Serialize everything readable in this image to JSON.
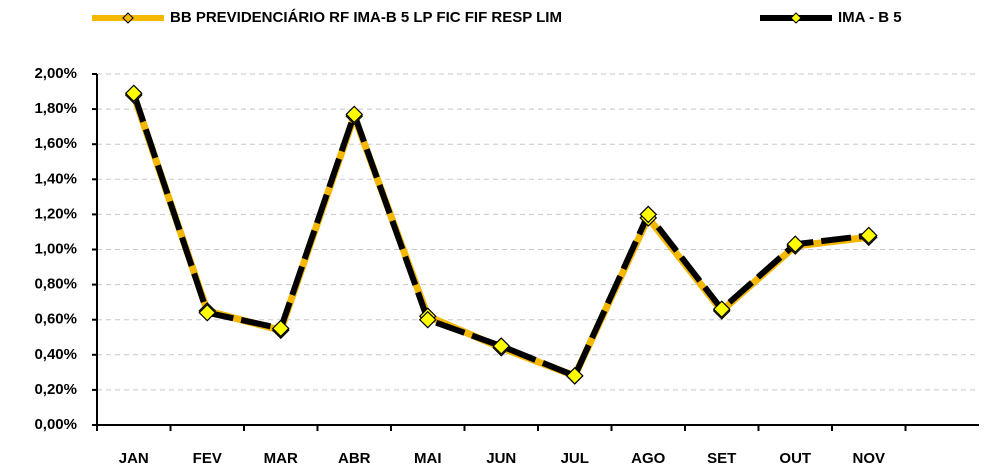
{
  "chart_data": {
    "type": "line",
    "categories": [
      "JAN",
      "FEV",
      "MAR",
      "ABR",
      "MAI",
      "JUN",
      "JUL",
      "AGO",
      "SET",
      "OUT",
      "NOV",
      null
    ],
    "series": [
      {
        "name": "BB PREVIDENCIÁRIO RF IMA-B 5 LP FIC FIF RESP LIM",
        "color": "#f5b800",
        "values": [
          1.88,
          0.65,
          0.54,
          1.76,
          0.62,
          0.44,
          0.28,
          1.18,
          0.65,
          1.02,
          1.07,
          null
        ]
      },
      {
        "name": "IMA - B 5",
        "color": "#000000",
        "values": [
          1.89,
          0.64,
          0.55,
          1.77,
          0.6,
          0.45,
          0.28,
          1.2,
          0.66,
          1.03,
          1.08,
          null
        ]
      }
    ],
    "marker_color": "#ffff00",
    "ylim": [
      0,
      2
    ],
    "yticks": [
      {
        "value": 0,
        "label": "0,00%"
      },
      {
        "value": 0.2,
        "label": "0,20%"
      },
      {
        "value": 0.4,
        "label": "0,40%"
      },
      {
        "value": 0.6,
        "label": "0,60%"
      },
      {
        "value": 0.8,
        "label": "0,80%"
      },
      {
        "value": 1.0,
        "label": "1,00%"
      },
      {
        "value": 1.2,
        "label": "1,20%"
      },
      {
        "value": 1.4,
        "label": "1,40%"
      },
      {
        "value": 1.6,
        "label": "1,60%"
      },
      {
        "value": 1.8,
        "label": "1,80%"
      },
      {
        "value": 2.0,
        "label": "2,00%"
      }
    ],
    "grid": true
  }
}
